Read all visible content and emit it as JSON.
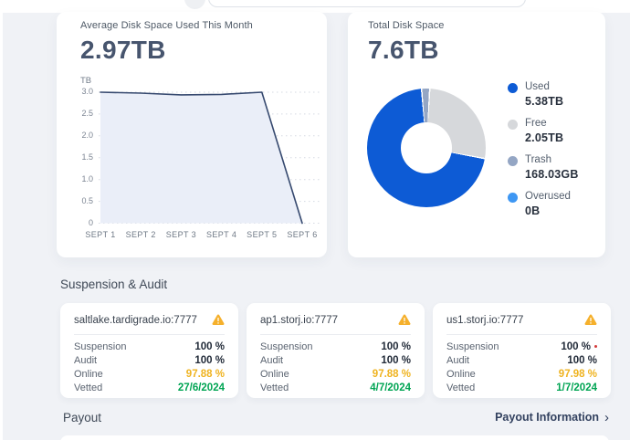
{
  "topbar": {
    "search_value": ""
  },
  "disk_card": {
    "title": "Average Disk Space Used This Month",
    "value": "2.97TB",
    "unit": "TB"
  },
  "total_card": {
    "title": "Total Disk Space",
    "value": "7.6TB"
  },
  "chart_data": [
    {
      "type": "area",
      "title": "Average Disk Space Used This Month",
      "headline_value": "2.97TB",
      "ylabel": "TB",
      "x": [
        "SEPT 1",
        "SEPT 2",
        "SEPT 3",
        "SEPT 4",
        "SEPT 5",
        "SEPT 6"
      ],
      "values": [
        3.0,
        2.98,
        2.94,
        2.95,
        3.0,
        0
      ],
      "ylim": [
        0,
        3.0
      ],
      "yticks": [
        3.0,
        2.5,
        2.0,
        1.5,
        1.0,
        0.5,
        0
      ],
      "grid": "dotted-horizontal",
      "line_color": "#36496f",
      "fill_color": "#eaeef8"
    },
    {
      "type": "donut",
      "title": "Total Disk Space",
      "headline_value": "7.6TB",
      "slices": [
        {
          "label": "Used",
          "value": 5.38,
          "display": "5.38TB",
          "color": "#0d5bd5"
        },
        {
          "label": "Free",
          "value": 2.05,
          "display": "2.05TB",
          "color": "#d6d8db"
        },
        {
          "label": "Trash",
          "value": 0.16803,
          "display": "168.03GB",
          "color": "#94a6c4"
        },
        {
          "label": "Overused",
          "value": 0,
          "display": "0B",
          "color": "#3e97f3"
        }
      ],
      "legend_position": "right",
      "draw_order": [
        2,
        1,
        0
      ],
      "start_angle_deg": -4
    }
  ],
  "suspension": {
    "heading": "Suspension & Audit",
    "row_labels": [
      "Suspension",
      "Audit",
      "Online",
      "Vetted"
    ],
    "cards": [
      {
        "host": "saltlake.tardigrade.io:7777",
        "suspension": "100 %",
        "audit": "100 %",
        "online": "97.88 %",
        "vetted": "27/6/2024",
        "warning": true
      },
      {
        "host": "ap1.storj.io:7777",
        "suspension": "100 %",
        "audit": "100 %",
        "online": "97.88 %",
        "vetted": "4/7/2024",
        "warning": true
      },
      {
        "host": "us1.storj.io:7777",
        "suspension": "100 %",
        "audit": "100 %",
        "online": "97.98 %",
        "vetted": "1/7/2024",
        "warning": true,
        "red_dot_artifact": true
      }
    ]
  },
  "payout": {
    "heading": "Payout",
    "link_label": "Payout Information",
    "chevron": "›"
  },
  "colors": {
    "page_bg": "#f0f2f6",
    "card_bg": "#ffffff",
    "accent_blue": "#0d5bd5",
    "warning_amber": "#efb320",
    "success_green": "#00a453",
    "warning_icon": "#f5b02c",
    "headline_text": "#47556e"
  }
}
